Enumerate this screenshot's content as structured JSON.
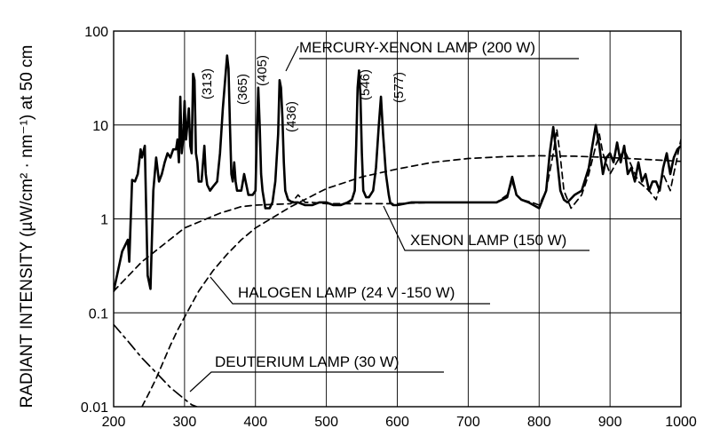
{
  "chart_data": {
    "type": "line",
    "title": "",
    "xlabel": "",
    "ylabel": "RADIANT INTENSITY (µW/cm² · nm⁻¹) at 50 cm",
    "y_scale": "log",
    "xlim": [
      200,
      1000
    ],
    "ylim": [
      0.01,
      100
    ],
    "grid": true,
    "x_ticks": [
      "200",
      "300",
      "400",
      "500",
      "600",
      "700",
      "800",
      "900",
      "1000"
    ],
    "y_ticks": [
      "0.01",
      "0.1",
      "1",
      "10",
      "100"
    ],
    "series": [
      {
        "name": "MERCURY-XENON LAMP (200 W)",
        "style": "solid",
        "x": [
          200,
          212,
          220,
          222,
          226,
          230,
          234,
          238,
          240,
          244,
          248,
          252,
          256,
          260,
          264,
          268,
          272,
          276,
          280,
          284,
          288,
          290,
          292,
          294,
          296,
          298,
          300,
          302,
          304,
          306,
          308,
          310,
          312,
          314,
          316,
          318,
          320,
          324,
          328,
          330,
          332,
          336,
          340,
          346,
          350,
          354,
          360,
          362,
          364,
          366,
          368,
          370,
          372,
          374,
          380,
          384,
          390,
          396,
          400,
          402,
          404,
          406,
          408,
          410,
          414,
          420,
          424,
          428,
          432,
          434,
          436,
          438,
          440,
          442,
          446,
          452,
          460,
          470,
          480,
          490,
          500,
          510,
          520,
          530,
          536,
          540,
          542,
          544,
          546,
          548,
          550,
          552,
          556,
          560,
          566,
          570,
          574,
          577,
          580,
          584,
          588,
          590,
          594,
          600,
          620,
          640,
          660,
          680,
          700,
          720,
          740,
          755,
          762,
          768,
          775,
          785,
          800,
          810,
          815,
          820,
          825,
          830,
          835,
          840,
          850,
          860,
          870,
          875,
          880,
          885,
          890,
          895,
          900,
          905,
          910,
          915,
          920,
          925,
          930,
          935,
          940,
          945,
          950,
          955,
          960,
          965,
          970,
          975,
          980,
          985,
          990,
          995,
          1000
        ],
        "y": [
          0.17,
          0.45,
          0.6,
          0.35,
          2.6,
          2.5,
          3.0,
          5.5,
          4.5,
          6.0,
          0.25,
          0.18,
          2.0,
          4.5,
          2.5,
          3.0,
          4.0,
          5.0,
          4.5,
          5.5,
          5.5,
          7.0,
          4.0,
          20.0,
          5.0,
          7.0,
          18.0,
          7.0,
          10.0,
          15.0,
          6.0,
          5.0,
          35.0,
          30.0,
          5.0,
          4.0,
          2.5,
          2.5,
          6.0,
          3.0,
          2.3,
          2.0,
          2.2,
          2.5,
          5.0,
          15.0,
          55.0,
          40.0,
          10.0,
          3.0,
          2.5,
          4.0,
          2.5,
          2.0,
          2.0,
          3.0,
          1.8,
          1.8,
          2.0,
          8.0,
          25.0,
          10.0,
          3.0,
          2.0,
          1.3,
          1.3,
          1.5,
          2.5,
          8.0,
          30.0,
          25.0,
          12.0,
          4.0,
          2.0,
          1.6,
          1.5,
          1.5,
          1.4,
          1.4,
          1.5,
          1.5,
          1.4,
          1.4,
          1.5,
          1.6,
          2.0,
          6.0,
          25.0,
          38.0,
          20.0,
          5.0,
          2.0,
          1.7,
          1.7,
          2.0,
          3.5,
          10.0,
          20.0,
          8.0,
          3.0,
          1.8,
          1.5,
          1.4,
          1.4,
          1.5,
          1.5,
          1.5,
          1.5,
          1.5,
          1.5,
          1.5,
          1.7,
          2.8,
          1.8,
          1.6,
          1.5,
          1.3,
          2.0,
          5.0,
          9.5,
          4.5,
          2.0,
          1.6,
          1.5,
          1.8,
          2.0,
          3.5,
          6.0,
          10.0,
          6.0,
          3.0,
          4.5,
          5.0,
          4.0,
          6.5,
          4.0,
          6.0,
          3.0,
          3.5,
          2.5,
          4.0,
          2.5,
          3.0,
          2.0,
          2.5,
          2.5,
          2.0,
          3.5,
          5.0,
          3.0,
          4.5,
          5.5,
          6.0
        ]
      },
      {
        "name": "XENON LAMP (150 W)",
        "style": "dashed",
        "x": [
          200,
          240,
          300,
          350,
          380,
          400,
          450,
          460,
          470,
          480,
          500,
          550,
          600,
          650,
          700,
          740,
          755,
          762,
          768,
          775,
          790,
          800,
          810,
          820,
          825,
          830,
          835,
          845,
          860,
          870,
          880,
          885,
          890,
          900,
          920,
          940,
          955,
          965,
          975,
          985,
          1000
        ],
        "y": [
          0.17,
          0.35,
          0.8,
          1.15,
          1.35,
          1.4,
          1.45,
          1.8,
          1.5,
          1.5,
          1.45,
          1.45,
          1.45,
          1.5,
          1.5,
          1.5,
          1.8,
          2.5,
          1.8,
          1.6,
          1.5,
          1.4,
          2.0,
          5.0,
          9.0,
          4.5,
          2.0,
          1.3,
          1.8,
          3.0,
          6.0,
          8.0,
          5.0,
          3.0,
          5.5,
          2.5,
          2.0,
          1.6,
          3.0,
          2.0,
          7.0
        ]
      },
      {
        "name": "HALOGEN LAMP (24 V -150 W)",
        "style": "dashed",
        "x": [
          240,
          250,
          260,
          270,
          280,
          290,
          300,
          320,
          340,
          360,
          380,
          400,
          450,
          500,
          550,
          600,
          650,
          700,
          750,
          800,
          850,
          900,
          950,
          1000
        ],
        "y": [
          0.01,
          0.014,
          0.02,
          0.03,
          0.045,
          0.065,
          0.09,
          0.17,
          0.28,
          0.42,
          0.6,
          0.8,
          1.35,
          2.1,
          2.8,
          3.4,
          4.0,
          4.4,
          4.6,
          4.7,
          4.65,
          4.5,
          4.3,
          4.1
        ]
      },
      {
        "name": "DEUTERIUM LAMP (30 W)",
        "style": "dash-dot",
        "x": [
          200,
          220,
          240,
          260,
          280,
          300,
          310,
          320,
          330,
          335
        ],
        "y": [
          0.075,
          0.05,
          0.033,
          0.023,
          0.016,
          0.012,
          0.0105,
          0.0098,
          0.0094,
          0.0092
        ]
      }
    ],
    "annotations": [
      {
        "text": "MERCURY-XENON LAMP (200 W)"
      },
      {
        "text": "XENON LAMP (150 W)"
      },
      {
        "text": "HALOGEN LAMP (24 V -150 W)"
      },
      {
        "text": "DEUTERIUM LAMP (30 W)"
      },
      {
        "text": "(313)"
      },
      {
        "text": "(365)"
      },
      {
        "text": "(405)"
      },
      {
        "text": "(436)"
      },
      {
        "text": "(546)"
      },
      {
        "text": "(577)"
      }
    ]
  }
}
